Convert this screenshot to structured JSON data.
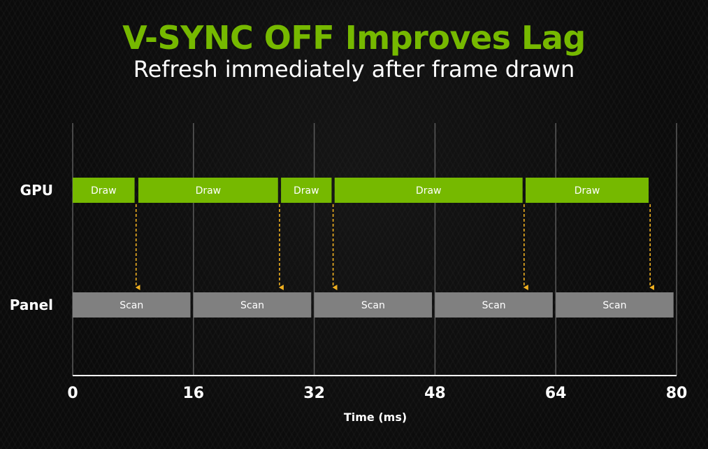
{
  "title": "V-SYNC OFF Improves Lag",
  "subtitle": "Refresh immediately after frame drawn",
  "colors": {
    "accent": "#76b900",
    "draw_bar": "#76b900",
    "scan_bar": "#808080",
    "arrow": "#f0b020",
    "gridline": "#5a5a5a",
    "text": "#ffffff"
  },
  "rows": {
    "gpu_label": "GPU",
    "panel_label": "Panel"
  },
  "axis": {
    "label": "Time (ms)",
    "min": 0,
    "max": 80,
    "ticks": [
      0,
      16,
      32,
      48,
      64,
      80
    ]
  },
  "gpu_draws": [
    {
      "label": "Draw",
      "start": 0,
      "end": 8.2
    },
    {
      "label": "Draw",
      "start": 8.7,
      "end": 27.2
    },
    {
      "label": "Draw",
      "start": 27.6,
      "end": 34.3
    },
    {
      "label": "Draw",
      "start": 34.7,
      "end": 59.6
    },
    {
      "label": "Draw",
      "start": 60.0,
      "end": 76.3
    }
  ],
  "panel_scans": [
    {
      "label": "Scan",
      "start": 0,
      "end": 15.6
    },
    {
      "label": "Scan",
      "start": 16.0,
      "end": 31.6
    },
    {
      "label": "Scan",
      "start": 32.0,
      "end": 47.6
    },
    {
      "label": "Scan",
      "start": 48.0,
      "end": 63.6
    },
    {
      "label": "Scan",
      "start": 64.0,
      "end": 79.6
    }
  ],
  "refresh_arrows_ms": [
    8.4,
    27.4,
    34.5,
    59.8,
    76.5
  ]
}
